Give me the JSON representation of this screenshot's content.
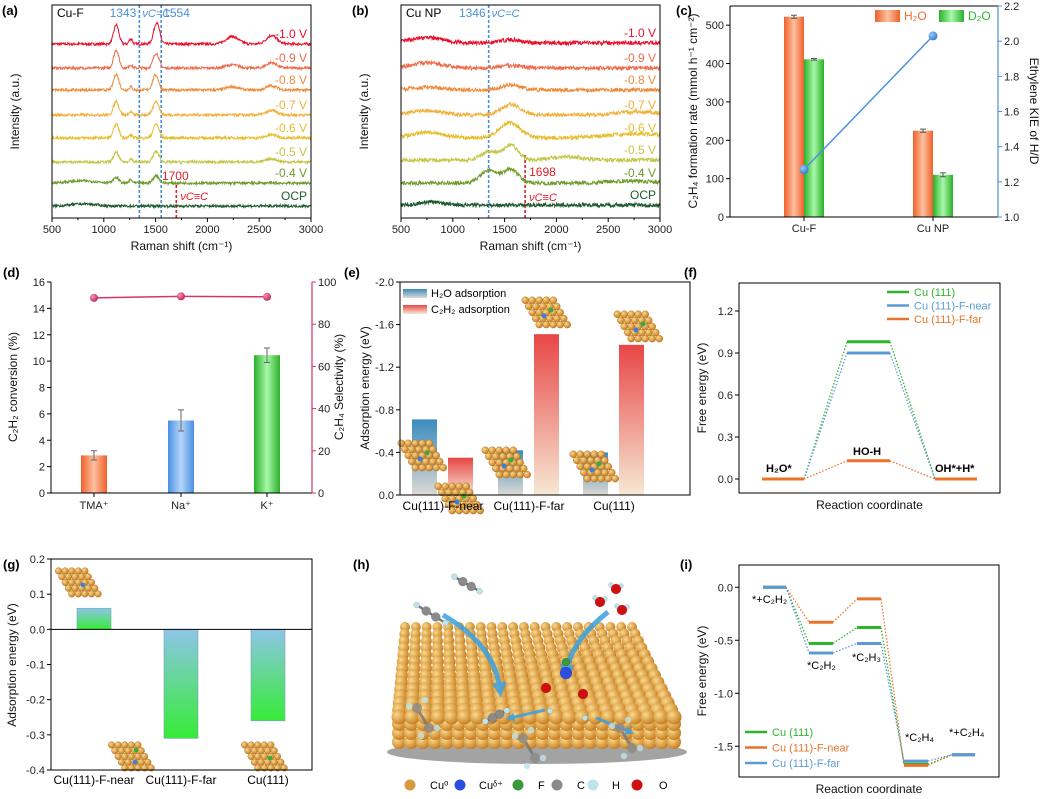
{
  "chart_data": {
    "a": {
      "type": "line",
      "panel_label": "(a)",
      "sample": "Cu-F",
      "xlabel": "Raman shift (cm⁻¹)",
      "ylabel": "Intensity (a.u.)",
      "xlim": [
        500,
        3000
      ],
      "ylim": [
        0,
        100
      ],
      "xtick_labels": [
        "500",
        "1000",
        "1500",
        "2000",
        "2500",
        "3000"
      ],
      "noise": 0.6,
      "markers": {
        "blue_values": [
          1343,
          1554
        ],
        "blue_labels": [
          "1343",
          "1554"
        ],
        "blue_nu": "νC=C",
        "red_value": 1700,
        "red_label": "1700",
        "red_nu": "νC≡C",
        "blue_color": "#4a90d9",
        "red_color": "#e0202a"
      },
      "series": [
        {
          "name": "-1.0 V",
          "color": "#e8102a",
          "offset": 81.7,
          "peaks": [
            [
              1120,
              9,
              25
            ],
            [
              1260,
              2.5,
              15
            ],
            [
              1510,
              10,
              28
            ],
            [
              2240,
              3.5,
              60
            ],
            [
              2620,
              4,
              50
            ]
          ]
        },
        {
          "name": "-0.9 V",
          "color": "#ee6a4a",
          "offset": 70.4,
          "peaks": [
            [
              1120,
              8.5,
              25
            ],
            [
              1260,
              1.5,
              15
            ],
            [
              1505,
              7,
              28
            ],
            [
              2240,
              1.5,
              60
            ],
            [
              2620,
              2.5,
              50
            ]
          ]
        },
        {
          "name": "-0.8 V",
          "color": "#ef8a3a",
          "offset": 60.1,
          "peaks": [
            [
              1120,
              7.5,
              25
            ],
            [
              1260,
              1.5,
              15
            ],
            [
              1500,
              7,
              28
            ],
            [
              2240,
              1.5,
              60
            ],
            [
              2620,
              2,
              50
            ]
          ]
        },
        {
          "name": "-0.7 V",
          "color": "#f0b13c",
          "offset": 48.4,
          "peaks": [
            [
              1120,
              6.5,
              25
            ],
            [
              1260,
              1.5,
              15
            ],
            [
              1505,
              6.5,
              28
            ],
            [
              2620,
              2,
              50
            ]
          ]
        },
        {
          "name": "-0.6 V",
          "color": "#e6bd2c",
          "offset": 37.6,
          "peaks": [
            [
              1120,
              6.5,
              25
            ],
            [
              1260,
              1.5,
              15
            ],
            [
              1505,
              6.5,
              28
            ],
            [
              2620,
              1.5,
              50
            ]
          ]
        },
        {
          "name": "-0.5 V",
          "color": "#c3c646",
          "offset": 26.3,
          "peaks": [
            [
              1120,
              4.5,
              25
            ],
            [
              1260,
              1.5,
              15
            ],
            [
              1505,
              5,
              28
            ],
            [
              2620,
              1.5,
              50
            ]
          ]
        },
        {
          "name": "-0.4 V",
          "color": "#6f9a2c",
          "offset": 16.4,
          "peaks": [
            [
              800,
              1,
              150
            ],
            [
              1120,
              2.5,
              25
            ],
            [
              1260,
              1.5,
              15
            ],
            [
              1505,
              3.5,
              28
            ]
          ]
        },
        {
          "name": "OCP",
          "color": "#1d5a2c",
          "offset": 5.6,
          "peaks": [
            [
              800,
              1,
              120
            ]
          ]
        }
      ]
    },
    "b": {
      "type": "line",
      "panel_label": "(b)",
      "sample": "Cu NP",
      "xlabel": "Raman shift (cm⁻¹)",
      "ylabel": "Intensity (a.u.)",
      "xlim": [
        500,
        3000
      ],
      "ylim": [
        0,
        100
      ],
      "xtick_labels": [
        "500",
        "1000",
        "1500",
        "2000",
        "2500",
        "3000"
      ],
      "noise": 0.9,
      "markers": {
        "blue_values": [
          1346
        ],
        "blue_labels": [
          "1346"
        ],
        "blue_nu": "νC=C",
        "red_value": 1698,
        "red_label": "1698",
        "red_nu": "νC≡C",
        "blue_color": "#4a90d9",
        "red_color": "#e0202a"
      },
      "series": [
        {
          "name": "-1.0 V",
          "color": "#e8102a",
          "offset": 82.2,
          "peaks": [
            [
              750,
              2.5,
              150
            ],
            [
              1560,
              1.5,
              100
            ]
          ]
        },
        {
          "name": "-0.9 V",
          "color": "#ee6a4a",
          "offset": 70.4,
          "peaks": [
            [
              750,
              2.5,
              150
            ],
            [
              1560,
              1.2,
              100
            ]
          ]
        },
        {
          "name": "-0.8 V",
          "color": "#ef8a3a",
          "offset": 60.1,
          "peaks": [
            [
              750,
              1.2,
              150
            ],
            [
              1560,
              2.5,
              90
            ]
          ]
        },
        {
          "name": "-0.7 V",
          "color": "#f0b13c",
          "offset": 48.4,
          "peaks": [
            [
              750,
              2,
              150
            ],
            [
              1560,
              5,
              90
            ],
            [
              2800,
              1.5,
              200
            ]
          ]
        },
        {
          "name": "-0.6 V",
          "color": "#e6bd2c",
          "offset": 37.6,
          "peaks": [
            [
              750,
              2.5,
              150
            ],
            [
              1550,
              7,
              100
            ],
            [
              2800,
              2,
              300
            ]
          ]
        },
        {
          "name": "-0.5 V",
          "color": "#c3c646",
          "offset": 27.2,
          "peaks": [
            [
              1350,
              4,
              80
            ],
            [
              1560,
              7,
              70
            ],
            [
              2100,
              1.5,
              150
            ]
          ]
        },
        {
          "name": "-0.4 V",
          "color": "#6f9a2c",
          "offset": 16.4,
          "peaks": [
            [
              1350,
              6,
              80
            ],
            [
              1560,
              6.5,
              70
            ],
            [
              2700,
              1,
              200
            ]
          ]
        },
        {
          "name": "OCP",
          "color": "#1d5a2c",
          "offset": 6.1,
          "peaks": [
            [
              800,
              1.5,
              100
            ]
          ]
        }
      ]
    },
    "c": {
      "type": "bar",
      "panel_label": "(c)",
      "categories": [
        "Cu-F",
        "Cu NP"
      ],
      "ylabel": "C₂H₄ formation rate (mmol h⁻¹ cm⁻²)",
      "y2label": "Ethylene KIE of H/D",
      "ylim": [
        0,
        550
      ],
      "y2lim": [
        1.0,
        2.2
      ],
      "ytick_labels": [
        "0",
        "100",
        "200",
        "300",
        "400",
        "500"
      ],
      "y2tick_labels": [
        "1.0",
        "1.2",
        "1.4",
        "1.6",
        "1.8",
        "2.0",
        "2.2"
      ],
      "series": [
        {
          "name": "H₂O",
          "values": [
            522,
            225
          ],
          "errors": [
            4,
            4
          ],
          "color": "#f26b2e"
        },
        {
          "name": "D₂O",
          "values": [
            411,
            110
          ],
          "errors": [
            2,
            5
          ],
          "color": "#2db52d"
        }
      ],
      "kie": {
        "values": [
          1.27,
          2.03
        ],
        "color": "#4a90e2"
      },
      "legend": "top-right"
    },
    "d": {
      "type": "bar",
      "panel_label": "(d)",
      "categories": [
        "TMA⁺",
        "Na⁺",
        "K⁺"
      ],
      "ylabel": "C₂H₂ conversion (%)",
      "y2label": "C₂H₄ Selectivity (%)",
      "ylim": [
        0,
        16
      ],
      "y2lim": [
        0,
        100
      ],
      "ytick_labels": [
        "0",
        "2",
        "4",
        "6",
        "8",
        "10",
        "12",
        "14",
        "16"
      ],
      "y2tick_labels": [
        "0",
        "20",
        "40",
        "60",
        "80",
        "100"
      ],
      "conversion": {
        "values": [
          2.85,
          5.5,
          10.45
        ],
        "errors": [
          0.35,
          0.8,
          0.55
        ],
        "colors": [
          "#f26b2e",
          "#4a90e2",
          "#2db52d"
        ]
      },
      "selectivity": {
        "values": [
          92.5,
          93.2,
          93.0
        ],
        "color": "#d6336c"
      }
    },
    "e": {
      "type": "bar",
      "panel_label": "(e)",
      "categories": [
        "Cu(111)-F-near",
        "Cu(111)-F-far",
        "Cu(111)"
      ],
      "ylabel": "Adsorption energy (eV)",
      "ylim": [
        0,
        -2.0
      ],
      "ytick_labels": [
        "0.0",
        "-0.4",
        "-0.8",
        "-1.2",
        "-1.6",
        "-2.0"
      ],
      "series": [
        {
          "name": "H₂O adsorption",
          "values": [
            -0.71,
            -0.42,
            -0.4
          ],
          "color": "#3a8cc0"
        },
        {
          "name": "C₂H₂ adsorption",
          "values": [
            -0.35,
            -1.51,
            -1.41
          ],
          "color": "#e84848"
        }
      ],
      "legend": "top-left"
    },
    "f": {
      "type": "line",
      "panel_label": "(f)",
      "states": [
        "H₂O*",
        "HO-H",
        "OH*+H*"
      ],
      "xlabel": "Reaction coordinate",
      "ylabel": "Free energy (eV)",
      "ylim": [
        -0.1,
        1.4
      ],
      "ytick_labels": [
        "0.0",
        "0.3",
        "0.6",
        "0.9",
        "1.2"
      ],
      "series": [
        {
          "name": "Cu (111)",
          "values": [
            0,
            0.98,
            0
          ],
          "color": "#2db52d"
        },
        {
          "name": "Cu (111)-F-near",
          "values": [
            0,
            0.9,
            0
          ],
          "color": "#5b9bd5"
        },
        {
          "name": "Cu (111)-F-far",
          "values": [
            0,
            0.13,
            0
          ],
          "color": "#e8742a"
        }
      ],
      "legend": "top-right"
    },
    "g": {
      "type": "bar",
      "panel_label": "(g)",
      "categories": [
        "Cu(111)-F-near",
        "Cu(111)-F-far",
        "Cu(111)"
      ],
      "ylabel": "Adsorption energy (eV)",
      "ylim": [
        -0.4,
        0.2
      ],
      "ytick_labels": [
        "-0.4",
        "-0.3",
        "-0.2",
        "-0.1",
        "0.0",
        "0.1",
        "0.2"
      ],
      "values": [
        0.06,
        -0.31,
        -0.26
      ]
    },
    "h": {
      "panel_label": "(h)",
      "legend": [
        {
          "label": "Cu⁰",
          "color": "#d89a3c"
        },
        {
          "label": "Cuᵟ⁺",
          "color": "#2a4fe0"
        },
        {
          "label": "F",
          "color": "#3a9a3a"
        },
        {
          "label": "C",
          "color": "#8a8a8a"
        },
        {
          "label": "H",
          "color": "#bfe3ea"
        },
        {
          "label": "O",
          "color": "#d01010"
        }
      ]
    },
    "i": {
      "type": "line",
      "panel_label": "(i)",
      "states": [
        "*+C₂H₂",
        "*C₂H₂",
        "*C₂H₃",
        "*C₂H₄",
        "*+C₂H₄"
      ],
      "xlabel": "Reaction coordinate",
      "ylabel": "Free energy (eV)",
      "ylim": [
        -1.79,
        0.21
      ],
      "ytick_labels": [
        "-1.5",
        "-1.0",
        "-0.5",
        "0.0"
      ],
      "series": [
        {
          "name": "Cu (111)",
          "values": [
            0,
            -0.53,
            -0.38,
            -1.67,
            -1.58
          ],
          "color": "#2db52d"
        },
        {
          "name": "Cu (111)-F-near",
          "values": [
            0,
            -0.33,
            -0.11,
            -1.68,
            -1.58
          ],
          "color": "#e8742a"
        },
        {
          "name": "Cu (111)-F-far",
          "values": [
            0,
            -0.62,
            -0.53,
            -1.64,
            -1.58
          ],
          "color": "#5b9bd5"
        }
      ],
      "legend": "bottom-left"
    }
  }
}
